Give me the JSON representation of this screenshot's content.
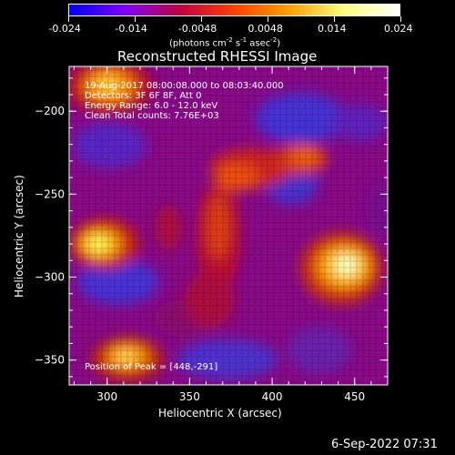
{
  "colorbar": {
    "ticks": [
      "-0.024",
      "-0.014",
      "-0.0048",
      "0.0048",
      "0.014",
      "0.024"
    ],
    "unit_label": "(photons cm",
    "unit_sup1": "-2",
    "unit_mid": " s",
    "unit_sup2": "-1",
    "unit_mid2": " asec",
    "unit_sup3": "-2",
    "unit_end": ")",
    "colors": [
      "#0000ff",
      "#7f00ff",
      "#c00040",
      "#ff4000",
      "#ffa000",
      "#ffff80",
      "#ffffff"
    ]
  },
  "chart_data": {
    "type": "heatmap",
    "title": "Reconstructed RHESSI Image",
    "xlabel": "Heliocentric X (arcsec)",
    "ylabel": "Heliocentric Y (arcsec)",
    "xlim": [
      277,
      470
    ],
    "ylim": [
      -365,
      -173
    ],
    "xticks": [
      "300",
      "350",
      "400",
      "450"
    ],
    "yticks": [
      "-200",
      "-250",
      "-300",
      "-350"
    ],
    "grid": false,
    "annotations": {
      "time": "19-Aug-2017 08:00:08.000 to 08:03:40.000",
      "detectors": "Detectors: 3F 6F 8F, Att 0",
      "energy": "Energy Range: 6.0 - 12.0 keV",
      "clean": "Clean    Total counts: 7.76E+03",
      "peak": "Position of Peak = [448,-291]"
    }
  },
  "footer": {
    "date": "6-Sep-2022 07:31"
  }
}
